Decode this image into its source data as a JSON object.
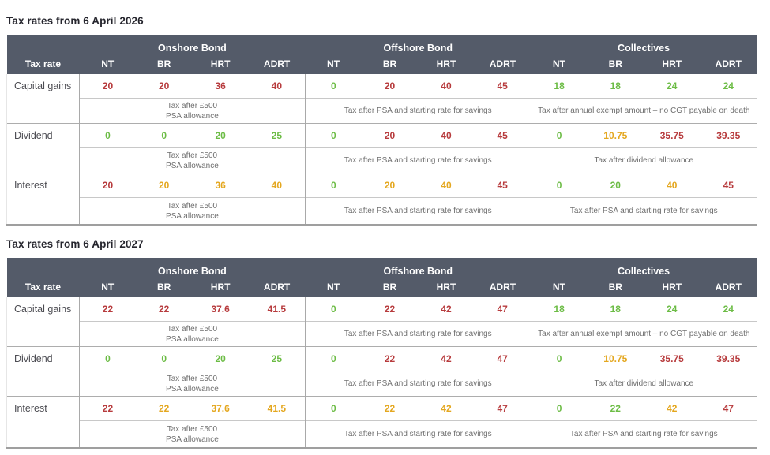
{
  "colors": {
    "header_bg": "#545b69",
    "value_red": "#b73b3d",
    "value_green": "#6cbc45",
    "value_amber": "#e4a71f",
    "note_text": "#6f6f6f",
    "title_color": "#26262e"
  },
  "header": {
    "tax_rate_label": "Tax rate",
    "groups": [
      "Onshore Bond",
      "Offshore Bond",
      "Collectives"
    ],
    "columns": [
      "NT",
      "BR",
      "HRT",
      "ADRT"
    ]
  },
  "tables": [
    {
      "title": "Tax rates from 6 April 2026",
      "rows": [
        {
          "label": "Capital gains",
          "groups": [
            {
              "values": [
                {
                  "v": "20",
                  "c": "red"
                },
                {
                  "v": "20",
                  "c": "red"
                },
                {
                  "v": "36",
                  "c": "red"
                },
                {
                  "v": "40",
                  "c": "red"
                }
              ],
              "note": "Tax after £500\nPSA allowance"
            },
            {
              "values": [
                {
                  "v": "0",
                  "c": "green"
                },
                {
                  "v": "20",
                  "c": "red"
                },
                {
                  "v": "40",
                  "c": "red"
                },
                {
                  "v": "45",
                  "c": "red"
                }
              ],
              "note": "Tax after PSA and starting rate for savings"
            },
            {
              "values": [
                {
                  "v": "18",
                  "c": "green"
                },
                {
                  "v": "18",
                  "c": "green"
                },
                {
                  "v": "24",
                  "c": "green"
                },
                {
                  "v": "24",
                  "c": "green"
                }
              ],
              "note": "Tax after annual exempt amount – no CGT payable on death"
            }
          ]
        },
        {
          "label": "Dividend",
          "groups": [
            {
              "values": [
                {
                  "v": "0",
                  "c": "green"
                },
                {
                  "v": "0",
                  "c": "green"
                },
                {
                  "v": "20",
                  "c": "green"
                },
                {
                  "v": "25",
                  "c": "green"
                }
              ],
              "note": "Tax after £500\nPSA allowance"
            },
            {
              "values": [
                {
                  "v": "0",
                  "c": "green"
                },
                {
                  "v": "20",
                  "c": "red"
                },
                {
                  "v": "40",
                  "c": "red"
                },
                {
                  "v": "45",
                  "c": "red"
                }
              ],
              "note": "Tax after PSA and starting rate for savings"
            },
            {
              "values": [
                {
                  "v": "0",
                  "c": "green"
                },
                {
                  "v": "10.75",
                  "c": "amber"
                },
                {
                  "v": "35.75",
                  "c": "red"
                },
                {
                  "v": "39.35",
                  "c": "red"
                }
              ],
              "note": "Tax after dividend allowance"
            }
          ]
        },
        {
          "label": "Interest",
          "groups": [
            {
              "values": [
                {
                  "v": "20",
                  "c": "red"
                },
                {
                  "v": "20",
                  "c": "amber"
                },
                {
                  "v": "36",
                  "c": "amber"
                },
                {
                  "v": "40",
                  "c": "amber"
                }
              ],
              "note": "Tax after £500\nPSA allowance"
            },
            {
              "values": [
                {
                  "v": "0",
                  "c": "green"
                },
                {
                  "v": "20",
                  "c": "amber"
                },
                {
                  "v": "40",
                  "c": "amber"
                },
                {
                  "v": "45",
                  "c": "red"
                }
              ],
              "note": "Tax after PSA and starting rate for savings"
            },
            {
              "values": [
                {
                  "v": "0",
                  "c": "green"
                },
                {
                  "v": "20",
                  "c": "green"
                },
                {
                  "v": "40",
                  "c": "amber"
                },
                {
                  "v": "45",
                  "c": "red"
                }
              ],
              "note": "Tax after PSA and starting rate for savings"
            }
          ]
        }
      ]
    },
    {
      "title": "Tax rates from 6 April 2027",
      "rows": [
        {
          "label": "Capital gains",
          "groups": [
            {
              "values": [
                {
                  "v": "22",
                  "c": "red"
                },
                {
                  "v": "22",
                  "c": "red"
                },
                {
                  "v": "37.6",
                  "c": "red"
                },
                {
                  "v": "41.5",
                  "c": "red"
                }
              ],
              "note": "Tax after £500\nPSA allowance"
            },
            {
              "values": [
                {
                  "v": "0",
                  "c": "green"
                },
                {
                  "v": "22",
                  "c": "red"
                },
                {
                  "v": "42",
                  "c": "red"
                },
                {
                  "v": "47",
                  "c": "red"
                }
              ],
              "note": "Tax after PSA and starting rate for savings"
            },
            {
              "values": [
                {
                  "v": "18",
                  "c": "green"
                },
                {
                  "v": "18",
                  "c": "green"
                },
                {
                  "v": "24",
                  "c": "green"
                },
                {
                  "v": "24",
                  "c": "green"
                }
              ],
              "note": "Tax after annual exempt amount – no CGT payable on death"
            }
          ]
        },
        {
          "label": "Dividend",
          "groups": [
            {
              "values": [
                {
                  "v": "0",
                  "c": "green"
                },
                {
                  "v": "0",
                  "c": "green"
                },
                {
                  "v": "20",
                  "c": "green"
                },
                {
                  "v": "25",
                  "c": "green"
                }
              ],
              "note": "Tax after £500\nPSA allowance"
            },
            {
              "values": [
                {
                  "v": "0",
                  "c": "green"
                },
                {
                  "v": "22",
                  "c": "red"
                },
                {
                  "v": "42",
                  "c": "red"
                },
                {
                  "v": "47",
                  "c": "red"
                }
              ],
              "note": "Tax after PSA and starting rate for savings"
            },
            {
              "values": [
                {
                  "v": "0",
                  "c": "green"
                },
                {
                  "v": "10.75",
                  "c": "amber"
                },
                {
                  "v": "35.75",
                  "c": "red"
                },
                {
                  "v": "39.35",
                  "c": "red"
                }
              ],
              "note": "Tax after dividend allowance"
            }
          ]
        },
        {
          "label": "Interest",
          "groups": [
            {
              "values": [
                {
                  "v": "22",
                  "c": "red"
                },
                {
                  "v": "22",
                  "c": "amber"
                },
                {
                  "v": "37.6",
                  "c": "amber"
                },
                {
                  "v": "41.5",
                  "c": "amber"
                }
              ],
              "note": "Tax after £500\nPSA allowance"
            },
            {
              "values": [
                {
                  "v": "0",
                  "c": "green"
                },
                {
                  "v": "22",
                  "c": "amber"
                },
                {
                  "v": "42",
                  "c": "amber"
                },
                {
                  "v": "47",
                  "c": "red"
                }
              ],
              "note": "Tax after PSA and starting rate for savings"
            },
            {
              "values": [
                {
                  "v": "0",
                  "c": "green"
                },
                {
                  "v": "22",
                  "c": "green"
                },
                {
                  "v": "42",
                  "c": "amber"
                },
                {
                  "v": "47",
                  "c": "red"
                }
              ],
              "note": "Tax after PSA and starting rate for savings"
            }
          ]
        }
      ]
    }
  ]
}
